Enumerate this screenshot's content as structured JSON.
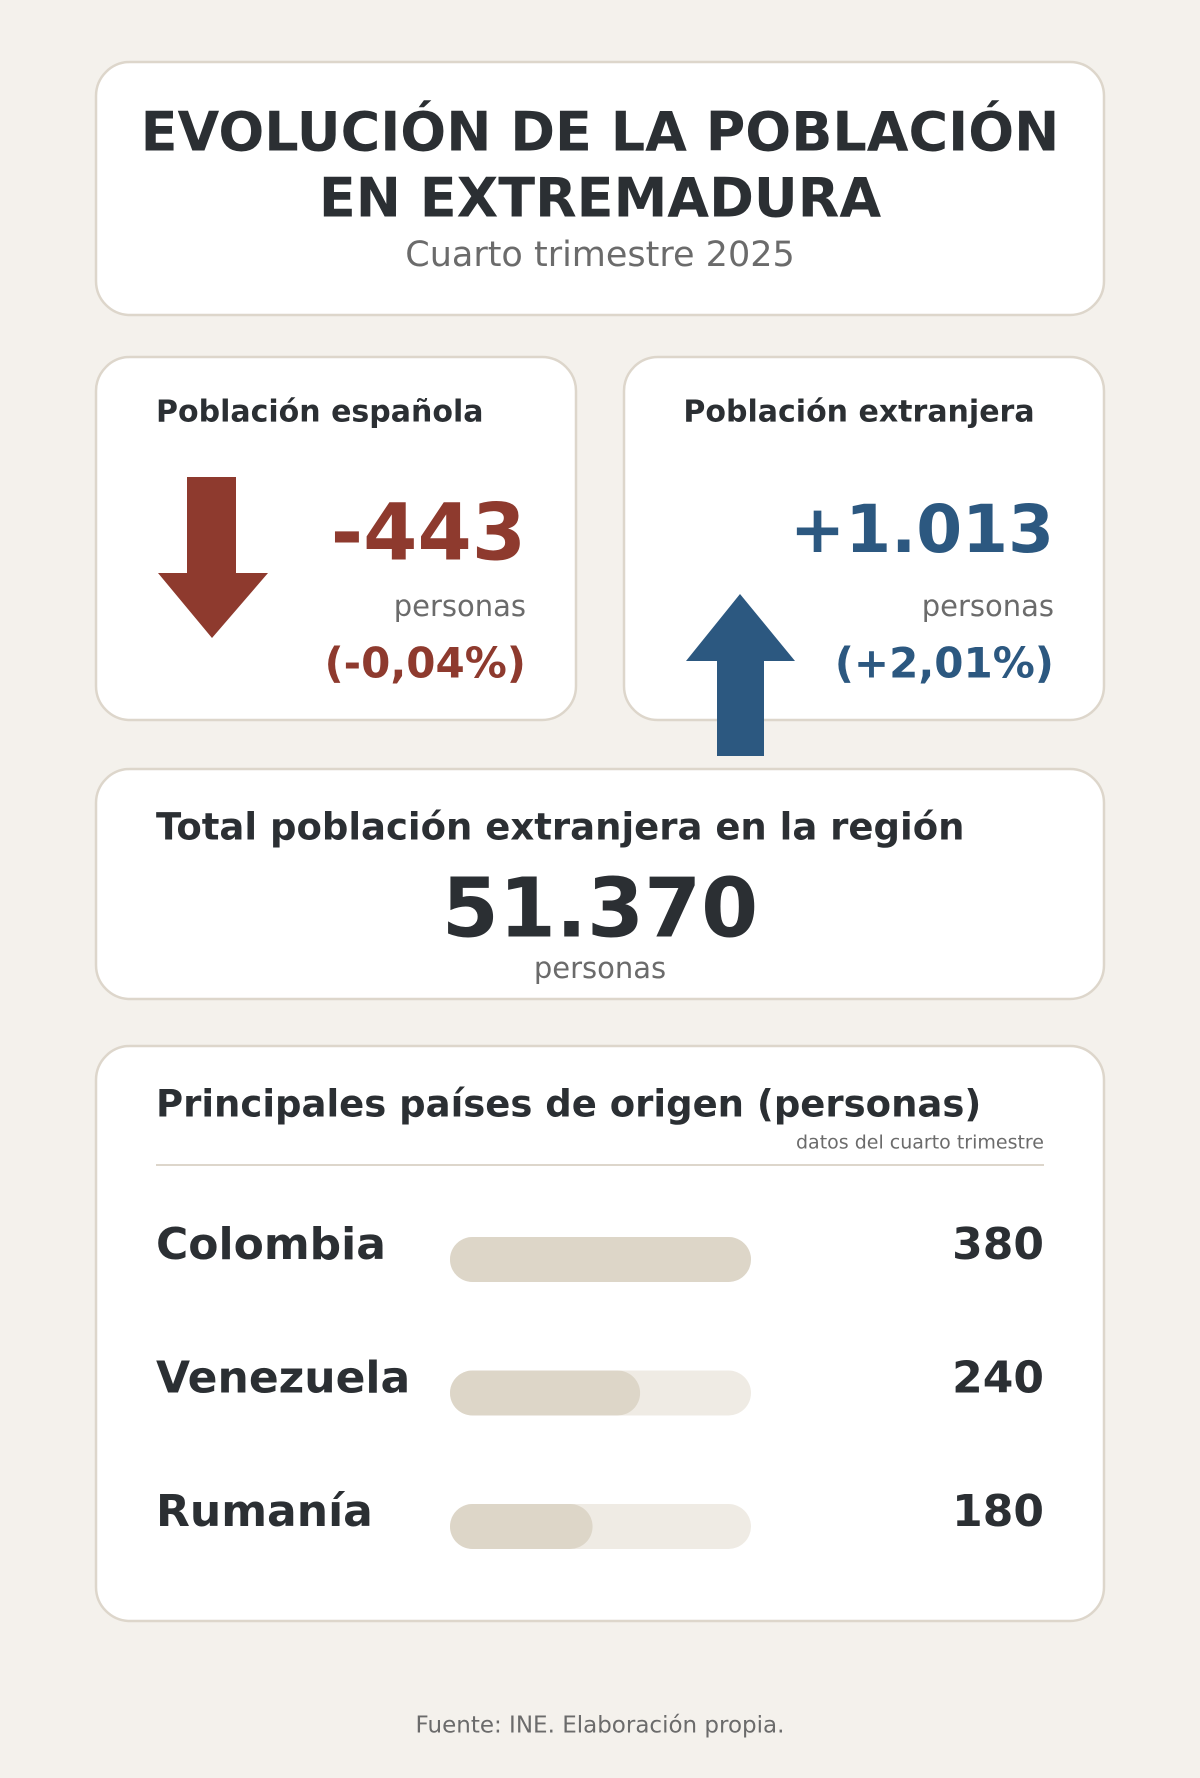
{
  "header": {
    "title_lines": [
      "EVOLUCIÓN DE LA POBLACIÓN",
      "EN EXTREMADURA"
    ],
    "subtitle": "Cuarto trimestre 2025"
  },
  "spanish": {
    "title": "Población española",
    "change": "-443",
    "unit": "personas",
    "percent": "(-0,04%)"
  },
  "foreign": {
    "title": "Población extranjera",
    "change": "+1.013",
    "unit": "personas",
    "percent": "(+2,01%)"
  },
  "total": {
    "title": "Total población extranjera en la región",
    "value": "51.370",
    "unit": "personas"
  },
  "countries": {
    "title": "Principales países de origen (personas)",
    "note": "datos del cuarto trimestre",
    "rows": [
      {
        "name": "Colombia",
        "value": 380
      },
      {
        "name": "Venezuela",
        "value": 240
      },
      {
        "name": "Rumanía",
        "value": 180
      }
    ]
  },
  "footer": "Fuente: INE. Elaboración propia."
}
